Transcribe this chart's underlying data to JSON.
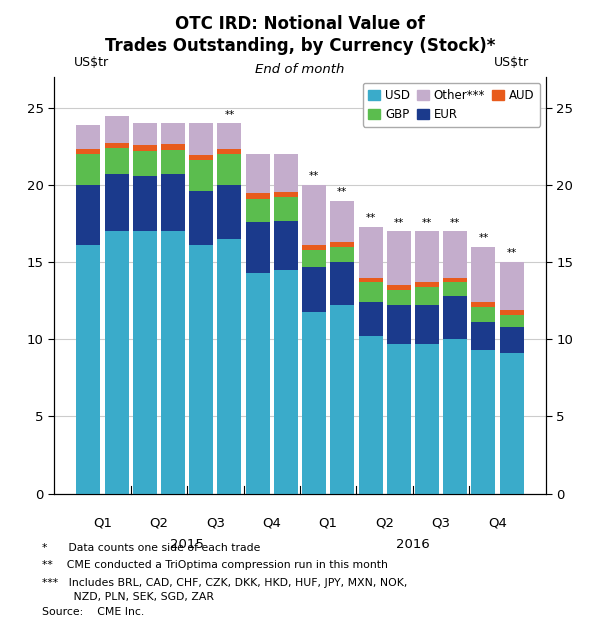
{
  "title_line1": "OTC IRD: Notional Value of",
  "title_line2": "Trades Outstanding, by Currency (Stock)*",
  "subtitle": "End of month",
  "ylabel_left": "US$tr",
  "ylabel_right": "US$tr",
  "ylim": [
    0,
    27
  ],
  "yticks": [
    0,
    5,
    10,
    15,
    20,
    25
  ],
  "double_star_bars": [
    5,
    8,
    9,
    10,
    11,
    12,
    13,
    14,
    15
  ],
  "colors": {
    "USD": "#3AABCA",
    "EUR": "#1B3A8C",
    "GBP": "#5BBD4E",
    "AUD": "#E85B1C",
    "Other": "#C4ADCC"
  },
  "USD": [
    16.1,
    17.0,
    17.0,
    17.0,
    16.1,
    16.5,
    14.3,
    14.5,
    11.8,
    12.2,
    10.2,
    9.7,
    9.7,
    10.0,
    9.3,
    9.1
  ],
  "EUR": [
    3.9,
    3.7,
    3.6,
    3.7,
    3.5,
    3.5,
    3.3,
    3.2,
    2.9,
    2.8,
    2.2,
    2.5,
    2.5,
    2.8,
    1.8,
    1.7
  ],
  "GBP": [
    2.0,
    1.7,
    1.6,
    1.6,
    2.0,
    2.0,
    1.5,
    1.5,
    1.1,
    1.0,
    1.3,
    1.0,
    1.2,
    0.9,
    1.0,
    0.8
  ],
  "AUD": [
    0.35,
    0.35,
    0.4,
    0.35,
    0.35,
    0.35,
    0.4,
    0.35,
    0.3,
    0.3,
    0.3,
    0.3,
    0.3,
    0.3,
    0.3,
    0.3
  ],
  "Other": [
    1.55,
    1.75,
    1.4,
    1.35,
    2.05,
    1.65,
    2.5,
    2.45,
    3.9,
    2.7,
    3.3,
    3.5,
    3.3,
    3.0,
    3.6,
    3.1
  ],
  "bar_width": 0.85,
  "footnote1": "*      Data counts one side of each trade",
  "footnote2": "**    CME conducted a TriOptima compression run in this month",
  "footnote3": "***   Includes BRL, CAD, CHF, CZK, DKK, HKD, HUF, JPY, MXN, NOK,",
  "footnote4": "         NZD, PLN, SEK, SGD, ZAR",
  "footnote5": "Source:    CME Inc."
}
